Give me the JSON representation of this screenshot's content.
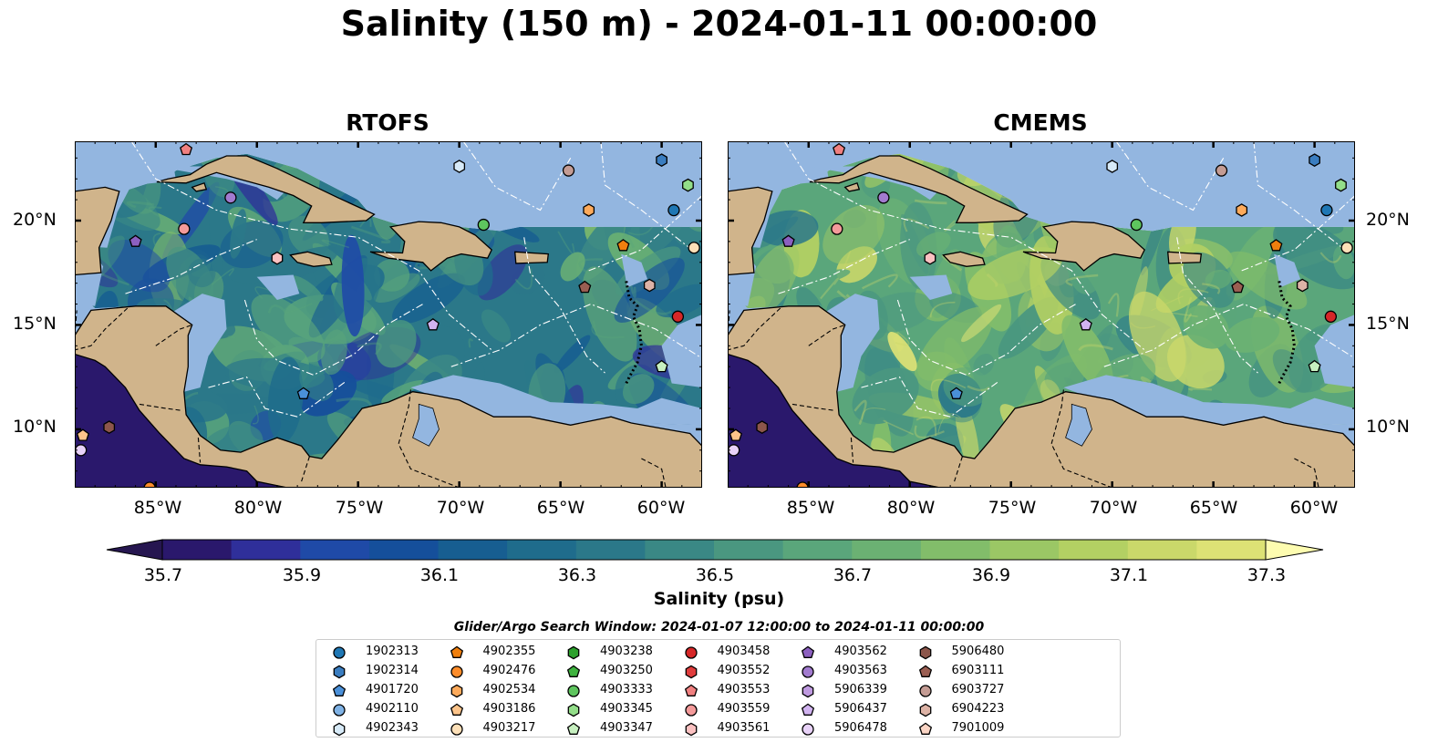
{
  "title": "Salinity (150 m) - 2024-01-11 00:00:00",
  "panels": [
    {
      "title": "RTOFS",
      "palette_shift": 0
    },
    {
      "title": "CMEMS",
      "palette_shift": 3
    }
  ],
  "lat_ticks": [
    "20°N",
    "15°N",
    "10°N"
  ],
  "lon_ticks": [
    "85°W",
    "80°W",
    "75°W",
    "70°W",
    "65°W",
    "60°W"
  ],
  "colorbar": {
    "label": "Salinity (psu)",
    "ticks": [
      "35.7",
      "35.9",
      "36.1",
      "36.3",
      "36.5",
      "36.7",
      "36.9",
      "37.1",
      "37.3"
    ],
    "colors": [
      "#2a186c",
      "#2f2f9a",
      "#1f4aa7",
      "#154f9b",
      "#175e91",
      "#1f6c8c",
      "#2b7889",
      "#3a8885",
      "#4a9780",
      "#5aa67b",
      "#6bb173",
      "#82bd6a",
      "#9bc765",
      "#b3d063",
      "#cad86a",
      "#dde275"
    ],
    "extend_low_color": "#261650",
    "extend_high_color": "#fdfcb0"
  },
  "map_colors": {
    "land": "#d0b48b",
    "shelf": "#93b6e0",
    "deep_outside": "#2a186c",
    "border_line": "#000000",
    "eez_line": "#ffffff"
  },
  "legend": {
    "title": "Glider/Argo Search Window: 2024-01-07 12:00:00 to 2024-01-11 00:00:00",
    "items": [
      {
        "id": "1902313",
        "shape": "circle",
        "color": "#1f77b4"
      },
      {
        "id": "1902314",
        "shape": "hexagon",
        "color": "#3a7dc0"
      },
      {
        "id": "4901720",
        "shape": "pentagon",
        "color": "#4a90d9"
      },
      {
        "id": "4902110",
        "shape": "circle",
        "color": "#7fb2e5"
      },
      {
        "id": "4902343",
        "shape": "hexagon",
        "color": "#d7eaf8"
      },
      {
        "id": "4902355",
        "shape": "pentagon",
        "color": "#f07f0e"
      },
      {
        "id": "4902476",
        "shape": "circle",
        "color": "#fd8c2a"
      },
      {
        "id": "4902534",
        "shape": "hexagon",
        "color": "#fdaa5b"
      },
      {
        "id": "4903186",
        "shape": "pentagon",
        "color": "#fdc48a"
      },
      {
        "id": "4903217",
        "shape": "circle",
        "color": "#fde0b8"
      },
      {
        "id": "4903238",
        "shape": "hexagon",
        "color": "#2ca02c"
      },
      {
        "id": "4903250",
        "shape": "pentagon",
        "color": "#3fb33f"
      },
      {
        "id": "4903333",
        "shape": "circle",
        "color": "#5ec55e"
      },
      {
        "id": "4903345",
        "shape": "hexagon",
        "color": "#93de89"
      },
      {
        "id": "4903347",
        "shape": "pentagon",
        "color": "#c7f0c0"
      },
      {
        "id": "4903458",
        "shape": "circle",
        "color": "#d62728"
      },
      {
        "id": "4903552",
        "shape": "hexagon",
        "color": "#e03d3d"
      },
      {
        "id": "4903553",
        "shape": "pentagon",
        "color": "#f08080"
      },
      {
        "id": "4903559",
        "shape": "circle",
        "color": "#f49a9a"
      },
      {
        "id": "4903561",
        "shape": "hexagon",
        "color": "#fbc1c1"
      },
      {
        "id": "4903562",
        "shape": "pentagon",
        "color": "#8c60c0"
      },
      {
        "id": "4903563",
        "shape": "circle",
        "color": "#a27bcf"
      },
      {
        "id": "5906339",
        "shape": "hexagon",
        "color": "#bf9ae0"
      },
      {
        "id": "5906437",
        "shape": "pentagon",
        "color": "#d1b3f0"
      },
      {
        "id": "5906478",
        "shape": "circle",
        "color": "#e8d2f8"
      },
      {
        "id": "5906480",
        "shape": "hexagon",
        "color": "#8c564b"
      },
      {
        "id": "6903111",
        "shape": "pentagon",
        "color": "#9a5e52"
      },
      {
        "id": "6903727",
        "shape": "circle",
        "color": "#c49c94"
      },
      {
        "id": "6904223",
        "shape": "hexagon",
        "color": "#ddb3a6"
      },
      {
        "id": "7901009",
        "shape": "pentagon",
        "color": "#fbd5c5"
      }
    ]
  },
  "floats": [
    {
      "shape": "pentagon",
      "color": "#f08080",
      "lon": -83.5,
      "lat": 23.4
    },
    {
      "shape": "circle",
      "color": "#a27bcf",
      "lon": -81.3,
      "lat": 21.1
    },
    {
      "shape": "circle",
      "color": "#f49a9a",
      "lon": -83.6,
      "lat": 19.6
    },
    {
      "shape": "pentagon",
      "color": "#8c60c0",
      "lon": -86.0,
      "lat": 19.0
    },
    {
      "shape": "hexagon",
      "color": "#fbc1c1",
      "lon": -79.0,
      "lat": 18.2
    },
    {
      "shape": "hexagon",
      "color": "#d7eaf8",
      "lon": -70.0,
      "lat": 22.6
    },
    {
      "shape": "circle",
      "color": "#5ec55e",
      "lon": -68.8,
      "lat": 19.8
    },
    {
      "shape": "circle",
      "color": "#c49c94",
      "lon": -64.6,
      "lat": 22.4
    },
    {
      "shape": "hexagon",
      "color": "#fdaa5b",
      "lon": -63.6,
      "lat": 20.5
    },
    {
      "shape": "pentagon",
      "color": "#f07f0e",
      "lon": -61.9,
      "lat": 18.8
    },
    {
      "shape": "hexagon",
      "color": "#3a7dc0",
      "lon": -60.0,
      "lat": 22.9
    },
    {
      "shape": "hexagon",
      "color": "#93de89",
      "lon": -58.7,
      "lat": 21.7
    },
    {
      "shape": "circle",
      "color": "#1f77b4",
      "lon": -59.4,
      "lat": 20.5
    },
    {
      "shape": "circle",
      "color": "#fde0b8",
      "lon": -58.4,
      "lat": 18.7
    },
    {
      "shape": "pentagon",
      "color": "#9a5e52",
      "lon": -63.8,
      "lat": 16.8
    },
    {
      "shape": "hexagon",
      "color": "#ddb3a6",
      "lon": -60.6,
      "lat": 16.9
    },
    {
      "shape": "circle",
      "color": "#d62728",
      "lon": -59.2,
      "lat": 15.4
    },
    {
      "shape": "pentagon",
      "color": "#d1b3f0",
      "lon": -71.3,
      "lat": 15.0
    },
    {
      "shape": "pentagon",
      "color": "#c7f0c0",
      "lon": -60.0,
      "lat": 13.0
    },
    {
      "shape": "pentagon",
      "color": "#4a90d9",
      "lon": -77.7,
      "lat": 11.7
    },
    {
      "shape": "hexagon",
      "color": "#8c564b",
      "lon": -87.3,
      "lat": 10.1
    },
    {
      "shape": "pentagon",
      "color": "#fdc48a",
      "lon": -88.6,
      "lat": 9.7
    },
    {
      "shape": "circle",
      "color": "#e8d2f8",
      "lon": -88.7,
      "lat": 9.0
    },
    {
      "shape": "circle",
      "color": "#fd8c2a",
      "lon": -85.3,
      "lat": 7.2
    }
  ]
}
